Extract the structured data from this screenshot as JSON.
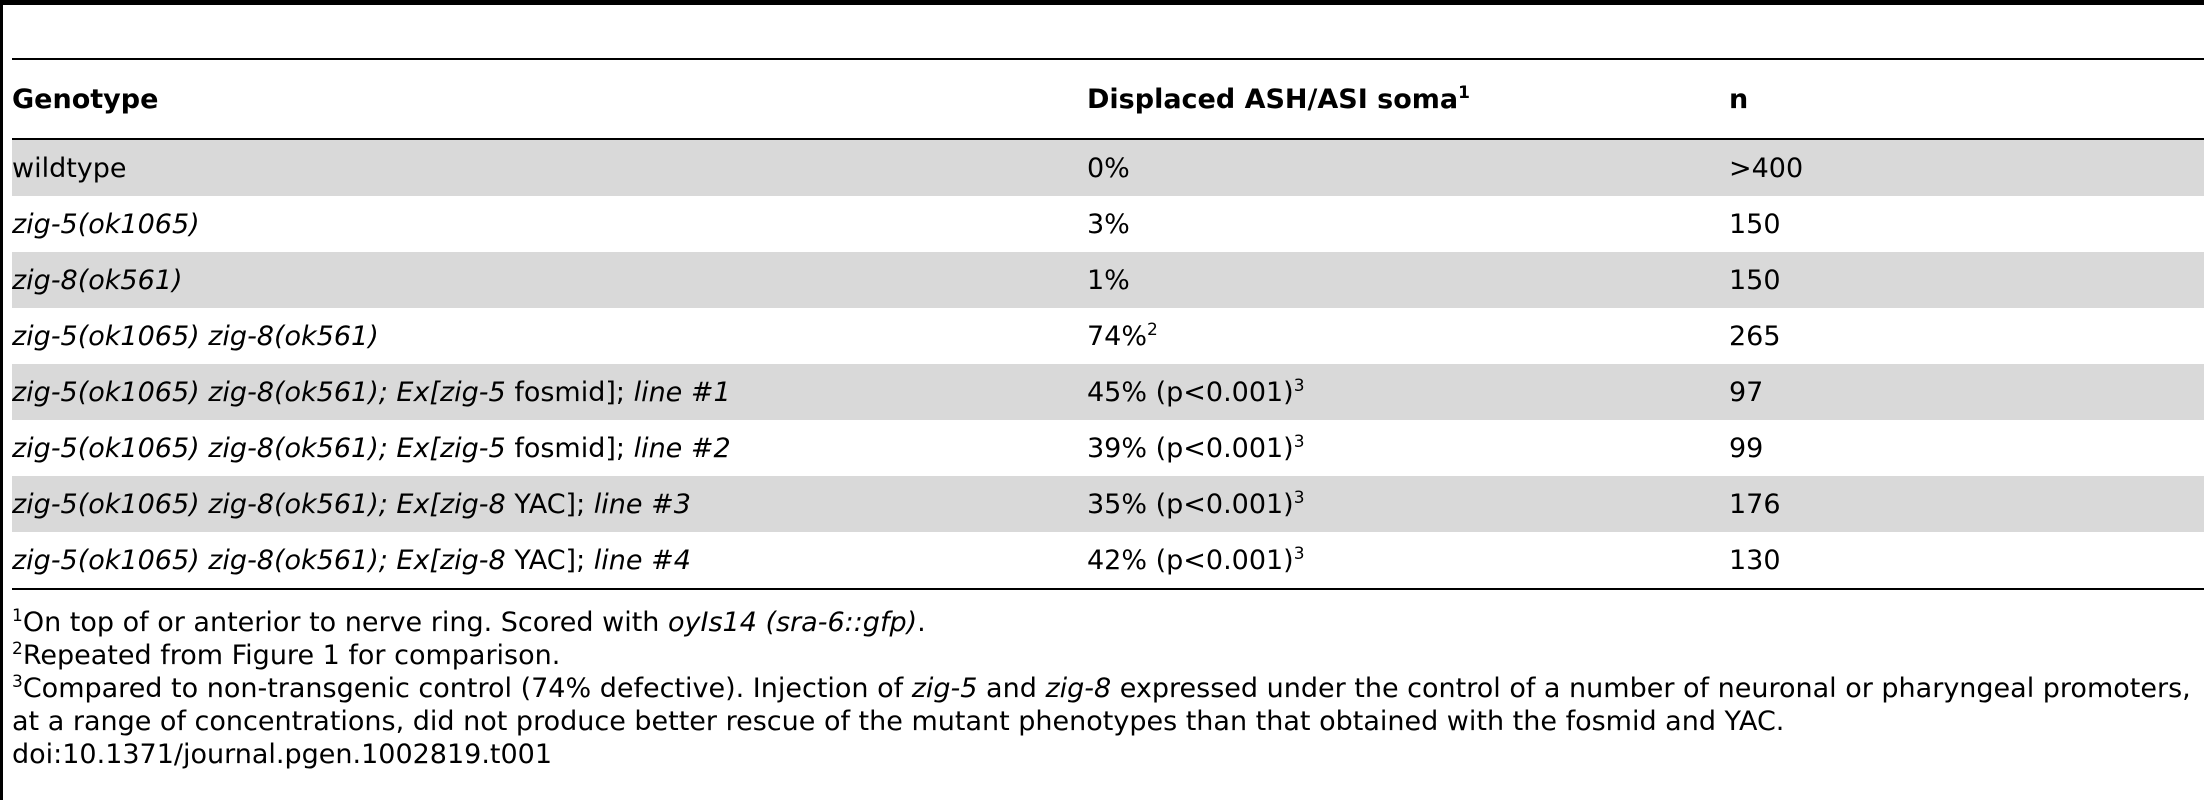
{
  "table": {
    "headers": {
      "genotype": "Genotype",
      "displaced": "Displaced ASH/ASI soma",
      "displaced_sup": "1",
      "n": "n"
    },
    "rows": [
      {
        "genotype": [
          {
            "text": "wildtype",
            "italic": false
          }
        ],
        "displaced": "0%",
        "displaced_sup": "",
        "n": ">400"
      },
      {
        "genotype": [
          {
            "text": "zig-5(ok1065)",
            "italic": true
          }
        ],
        "displaced": "3%",
        "displaced_sup": "",
        "n": "150"
      },
      {
        "genotype": [
          {
            "text": "zig-8(ok561)",
            "italic": true
          }
        ],
        "displaced": "1%",
        "displaced_sup": "",
        "n": "150"
      },
      {
        "genotype": [
          {
            "text": "zig-5(ok1065) zig-8(ok561)",
            "italic": true
          }
        ],
        "displaced": "74%",
        "displaced_sup": "2",
        "n": "265"
      },
      {
        "genotype": [
          {
            "text": "zig-5(ok1065) zig-8(ok561); Ex[zig-5",
            "italic": true
          },
          {
            "text": " fosmid]; ",
            "italic": false
          },
          {
            "text": "line #1",
            "italic": true
          }
        ],
        "displaced": "45% (p<0.001)",
        "displaced_sup": "3",
        "n": "97"
      },
      {
        "genotype": [
          {
            "text": "zig-5(ok1065) zig-8(ok561); Ex[zig-5",
            "italic": true
          },
          {
            "text": " fosmid]; ",
            "italic": false
          },
          {
            "text": "line #2",
            "italic": true
          }
        ],
        "displaced": "39% (p<0.001)",
        "displaced_sup": "3",
        "n": "99"
      },
      {
        "genotype": [
          {
            "text": "zig-5(ok1065) zig-8(ok561); Ex[zig-8",
            "italic": true
          },
          {
            "text": " YAC]; ",
            "italic": false
          },
          {
            "text": "line #3",
            "italic": true
          }
        ],
        "displaced": "35% (p<0.001)",
        "displaced_sup": "3",
        "n": "176"
      },
      {
        "genotype": [
          {
            "text": "zig-5(ok1065) zig-8(ok561); Ex[zig-8",
            "italic": true
          },
          {
            "text": " YAC]; ",
            "italic": false
          },
          {
            "text": "line #4",
            "italic": true
          }
        ],
        "displaced": "42% (p<0.001)",
        "displaced_sup": "3",
        "n": "130"
      }
    ]
  },
  "footnotes": [
    {
      "marker": "1",
      "parts": [
        {
          "text": "On top of or anterior to nerve ring. Scored with ",
          "italic": false
        },
        {
          "text": "oyIs14 (sra-6::gfp)",
          "italic": true
        },
        {
          "text": ".",
          "italic": false
        }
      ]
    },
    {
      "marker": "2",
      "parts": [
        {
          "text": "Repeated from Figure 1 for comparison.",
          "italic": false
        }
      ]
    },
    {
      "marker": "3",
      "parts": [
        {
          "text": "Compared to non-transgenic control (74% defective). Injection of ",
          "italic": false
        },
        {
          "text": "zig-5",
          "italic": true
        },
        {
          "text": " and ",
          "italic": false
        },
        {
          "text": "zig-8",
          "italic": true
        },
        {
          "text": " expressed under the control of a number of neuronal or pharyngeal promoters, at a range of concentrations, did not produce better rescue of the mutant phenotypes than that obtained with the fosmid and YAC.",
          "italic": false
        }
      ]
    }
  ],
  "doi": "doi:10.1371/journal.pgen.1002819.t001",
  "colors": {
    "shaded_row": "#d9d9d9",
    "rule": "#000000"
  }
}
